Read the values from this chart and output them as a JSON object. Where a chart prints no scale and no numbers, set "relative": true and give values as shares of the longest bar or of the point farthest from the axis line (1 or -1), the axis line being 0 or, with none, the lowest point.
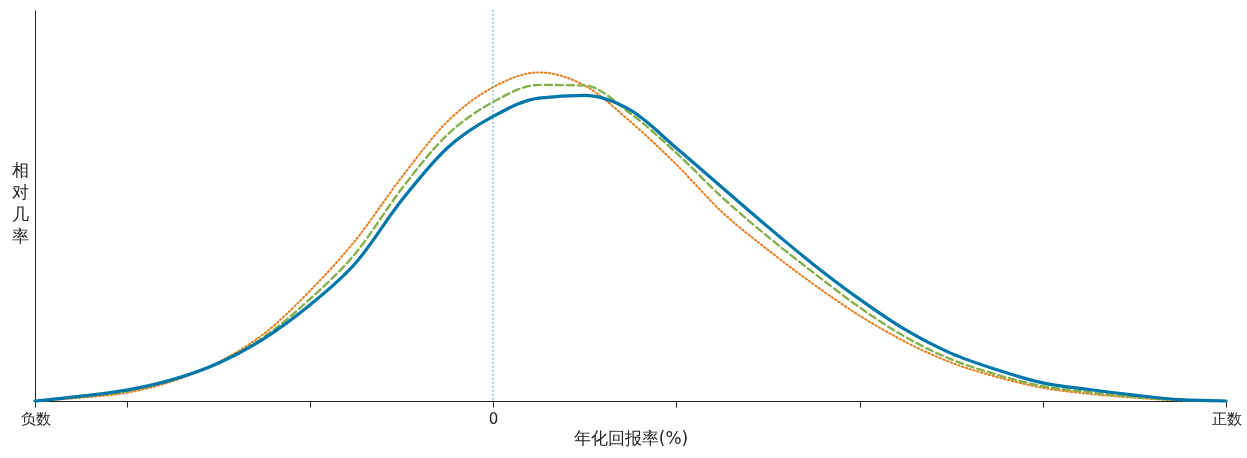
{
  "chart_data": {
    "type": "line",
    "relative": true,
    "xlabel": "年化回报率(%)",
    "ylabel": "相对几率",
    "categories": [
      "负数",
      null,
      null,
      null,
      null,
      null,
      null,
      null,
      null,
      null,
      "0",
      null,
      null,
      null,
      null,
      null,
      null,
      null,
      null,
      null,
      null,
      null,
      null,
      null,
      null,
      null,
      "正数"
    ],
    "grid": false,
    "legend": false,
    "marker": "none",
    "ref_lines": [
      {
        "axis": "x",
        "value": "0",
        "color": "#2a8dc5",
        "line_style": "dotted"
      }
    ],
    "series": [
      {
        "color": "#e87d1e",
        "line_style": "dotted",
        "values": [
          0,
          0.01,
          0.025,
          0.06,
          0.118,
          0.205,
          0.335,
          0.49,
          0.68,
          0.85,
          0.955,
          1.0,
          0.96,
          0.85,
          0.72,
          0.575,
          0.46,
          0.355,
          0.26,
          0.18,
          0.117,
          0.073,
          0.04,
          0.022,
          0.01,
          0.002,
          0
        ]
      },
      {
        "color": "#86b04a",
        "line_style": "dashed",
        "values": [
          0,
          0.013,
          0.03,
          0.065,
          0.115,
          0.195,
          0.31,
          0.45,
          0.645,
          0.81,
          0.91,
          0.962,
          0.96,
          0.875,
          0.755,
          0.62,
          0.5,
          0.39,
          0.285,
          0.195,
          0.127,
          0.08,
          0.045,
          0.027,
          0.012,
          0.003,
          0
        ]
      },
      {
        "color": "#0077a8",
        "line_style": "solid",
        "values": [
          0,
          0.015,
          0.033,
          0.065,
          0.115,
          0.19,
          0.292,
          0.42,
          0.61,
          0.77,
          0.866,
          0.922,
          0.93,
          0.885,
          0.77,
          0.65,
          0.53,
          0.415,
          0.31,
          0.217,
          0.145,
          0.095,
          0.055,
          0.035,
          0.018,
          0.004,
          0
        ]
      }
    ]
  }
}
